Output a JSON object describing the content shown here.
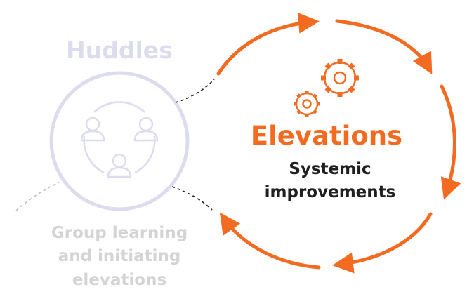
{
  "huddles": {
    "title": "Huddles",
    "description_lines": [
      "Group learning",
      "and initiating",
      "elevations"
    ]
  },
  "elevations": {
    "title": "Elevations",
    "description_lines": [
      "Systemic",
      "improvements"
    ]
  },
  "colors": {
    "accent_orange": "#F26B21",
    "faded_lavender": "#DCDCEE",
    "faded_text": "#D4D4D4",
    "dark_text": "#1F1F1F",
    "dashed_connector": "#1A1A1A",
    "faded_dash": "#BDBDBD"
  },
  "icons": {
    "huddles_circle": "group-of-people-icon",
    "elevations_circle": "gears-icon"
  }
}
